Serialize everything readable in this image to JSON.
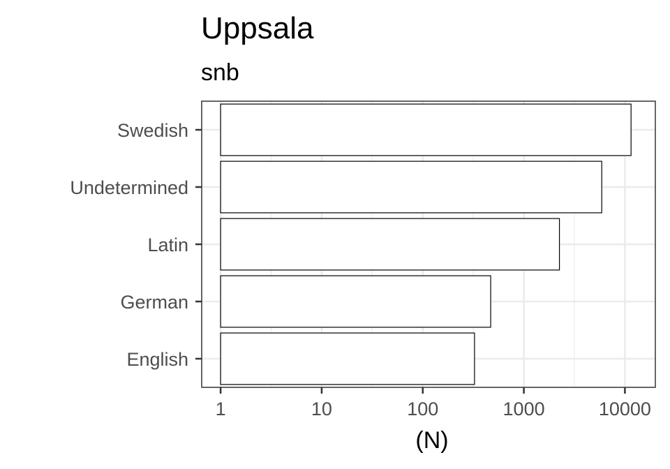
{
  "chart_data": {
    "type": "bar",
    "orientation": "horizontal",
    "title": "Uppsala",
    "subtitle": "snb",
    "xlabel": "(N)",
    "ylabel": "",
    "x_scale": "log10",
    "xlim": [
      0.65,
      20000
    ],
    "x_ticks": [
      1,
      10,
      100,
      1000,
      10000
    ],
    "x_tick_labels": [
      "1",
      "10",
      "100",
      "1000",
      "10000"
    ],
    "categories": [
      "Swedish",
      "Undetermined",
      "Latin",
      "German",
      "English"
    ],
    "values": [
      11500,
      5900,
      2250,
      470,
      325
    ],
    "grid": true,
    "legend": "none",
    "colors": {
      "bar_fill": "#ffffff",
      "bar_stroke": "#000000",
      "grid": "#ebebeb",
      "panel_border": "#333333",
      "tick_text": "#4d4d4d"
    }
  }
}
